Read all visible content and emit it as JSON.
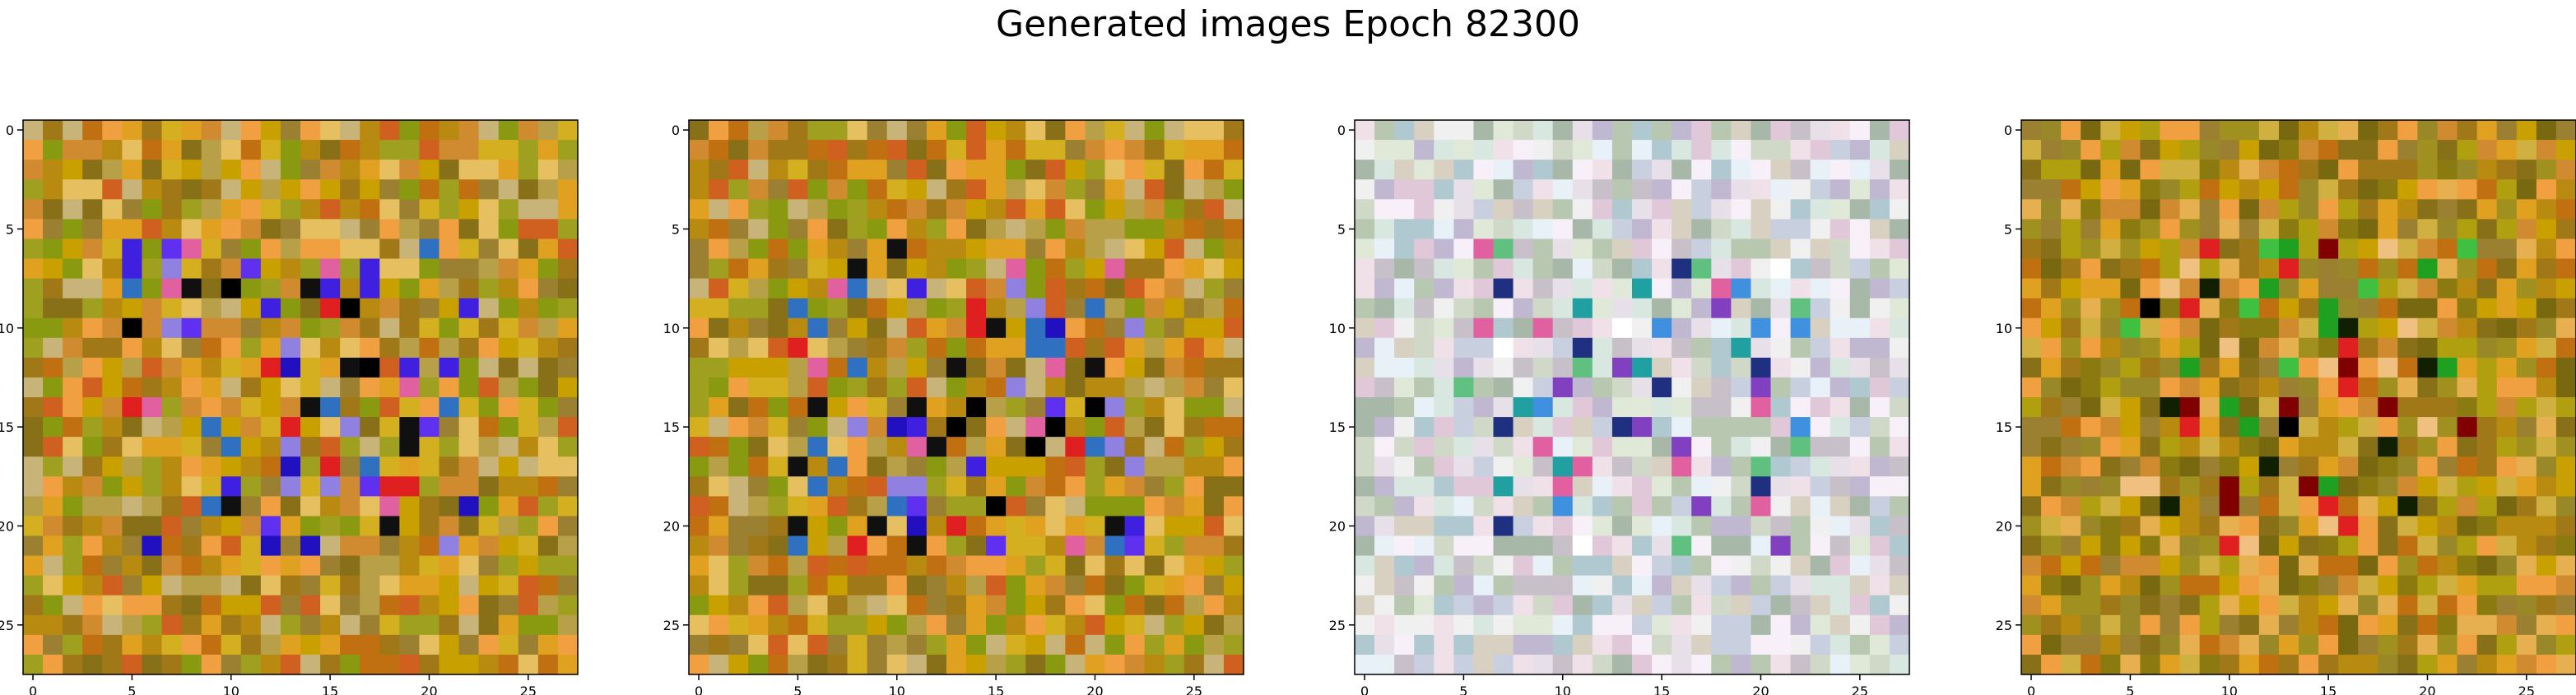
{
  "figure": {
    "title": "Generated images Epoch 82300"
  },
  "chart_data": [
    {
      "type": "heatmap",
      "palette": "warm",
      "grid_size": 28,
      "xlim": [
        -0.5,
        27.5
      ],
      "ylim": [
        27.5,
        -0.5
      ],
      "xticks": [
        0,
        5,
        10,
        15,
        20,
        25
      ],
      "yticks": [
        0,
        5,
        10,
        15,
        20,
        25
      ],
      "grid": false
    },
    {
      "type": "heatmap",
      "palette": "warm",
      "grid_size": 28,
      "xlim": [
        -0.5,
        27.5
      ],
      "ylim": [
        27.5,
        -0.5
      ],
      "xticks": [
        0,
        5,
        10,
        15,
        20,
        25
      ],
      "yticks": [
        0,
        5,
        10,
        15,
        20,
        25
      ],
      "grid": false
    },
    {
      "type": "heatmap",
      "palette": "pastel",
      "grid_size": 28,
      "xlim": [
        -0.5,
        27.5
      ],
      "ylim": [
        27.5,
        -0.5
      ],
      "xticks": [
        0,
        5,
        10,
        15,
        20,
        25
      ],
      "yticks": [
        0,
        5,
        10,
        15,
        20,
        25
      ],
      "grid": false
    },
    {
      "type": "heatmap",
      "palette": "warm-green",
      "grid_size": 28,
      "xlim": [
        -0.5,
        27.5
      ],
      "ylim": [
        27.5,
        -0.5
      ],
      "xticks": [
        0,
        5,
        10,
        15,
        20,
        25
      ],
      "yticks": [
        0,
        5,
        10,
        15,
        20,
        25
      ],
      "grid": false
    }
  ]
}
